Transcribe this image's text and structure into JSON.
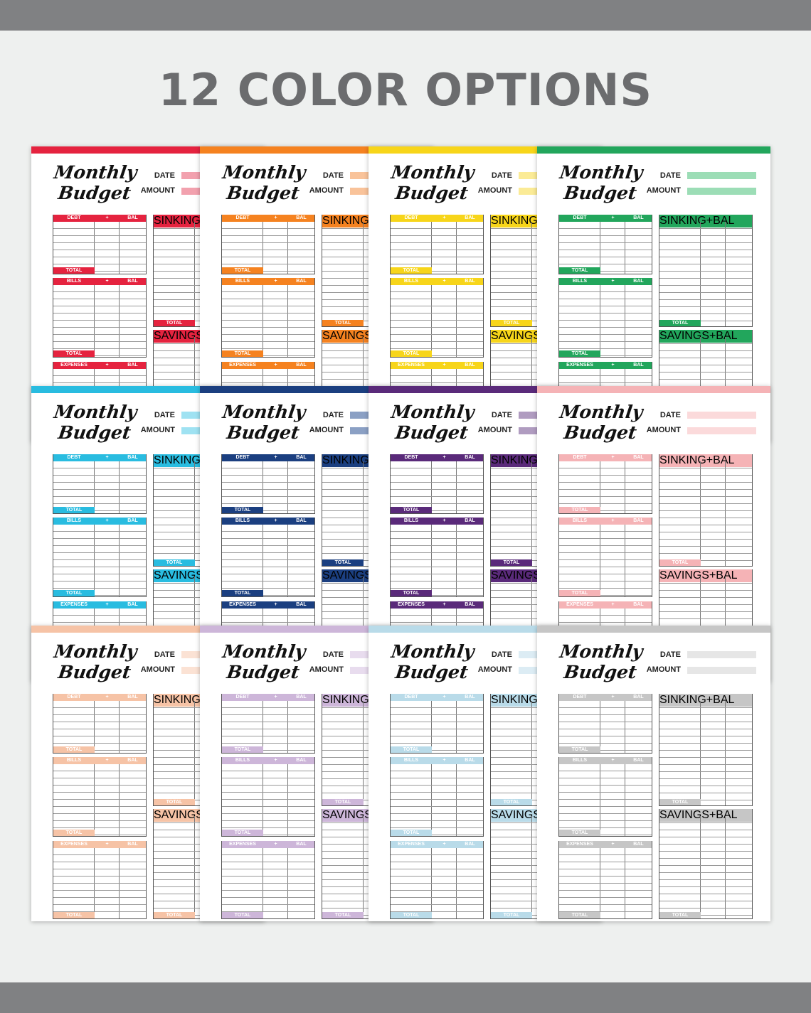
{
  "headline": "12 COLOR OPTIONS",
  "template": {
    "title_line1": "Monthly",
    "title_line2": "Budget",
    "date_label": "DATE",
    "amount_label": "AMOUNT",
    "debt": "DEBT",
    "bills": "BILLS",
    "expenses": "EXPENSES",
    "sinking": "SINKING",
    "savings": "SAVINGS",
    "plus": "+",
    "bal": "BAL",
    "total": "TOTAL"
  },
  "colors": [
    {
      "name": "red",
      "accent": "#e5233f",
      "light": "#f2a1ae"
    },
    {
      "name": "orange",
      "accent": "#f58220",
      "light": "#f9c39a"
    },
    {
      "name": "yellow",
      "accent": "#f7d51a",
      "light": "#fbeb96"
    },
    {
      "name": "green",
      "accent": "#22a65c",
      "light": "#9cddb6"
    },
    {
      "name": "sky-blue",
      "accent": "#29bce0",
      "light": "#9fe2f2"
    },
    {
      "name": "navy",
      "accent": "#1b3f80",
      "light": "#8ba0c4"
    },
    {
      "name": "purple",
      "accent": "#5a2a7a",
      "light": "#b09cc0"
    },
    {
      "name": "pink",
      "accent": "#f5b3b6",
      "light": "#fbdadb"
    },
    {
      "name": "peach",
      "accent": "#f6c3a6",
      "light": "#fbe2d4"
    },
    {
      "name": "lavender",
      "accent": "#cdb6d9",
      "light": "#e8dcee"
    },
    {
      "name": "powder-blue",
      "accent": "#b9dbe9",
      "light": "#dcecf4"
    },
    {
      "name": "gray",
      "accent": "#c6c6c6",
      "light": "#e6e6e6"
    }
  ]
}
